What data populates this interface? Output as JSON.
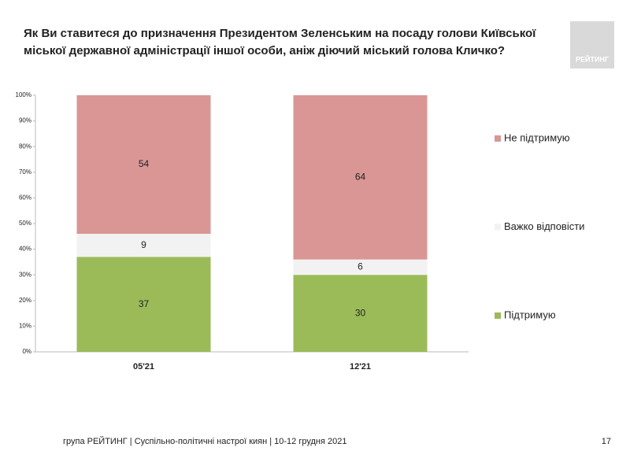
{
  "chart_data": {
    "type": "stacked_bar",
    "title_lines": [
      "Як Ви ставитеся до призначення Президентом Зеленським на посаду голови Київської",
      "міської державної адміністрації іншої особи, аніж діючий міський голова Кличко?"
    ],
    "categories": [
      "05'21",
      "12'21"
    ],
    "series": [
      {
        "name": "Підтримую",
        "color": "#9bbb59",
        "values": [
          37,
          30
        ]
      },
      {
        "name": "Важко відповісти",
        "color": "#f2f2f2",
        "values": [
          9,
          6
        ]
      },
      {
        "name": "Не підтримую",
        "color": "#d99694",
        "values": [
          54,
          64
        ]
      }
    ],
    "ylim": [
      0,
      100
    ],
    "yticks": [
      {
        "value": 0,
        "label": "0%"
      },
      {
        "value": 10,
        "label": "10%"
      },
      {
        "value": 20,
        "label": "20%"
      },
      {
        "value": 30,
        "label": "30%"
      },
      {
        "value": 40,
        "label": "40%"
      },
      {
        "value": 50,
        "label": "50%"
      },
      {
        "value": 60,
        "label": "60%"
      },
      {
        "value": 70,
        "label": "70%"
      },
      {
        "value": 80,
        "label": "80%"
      },
      {
        "value": 90,
        "label": "90%"
      },
      {
        "value": 100,
        "label": "100%"
      }
    ],
    "legend": "right"
  },
  "logo": "РЕЙТИНГ",
  "footer": "група РЕЙТИНГ | Суспільно-політичні настрої киян | 10-12 грудня 2021",
  "page_number": "17"
}
